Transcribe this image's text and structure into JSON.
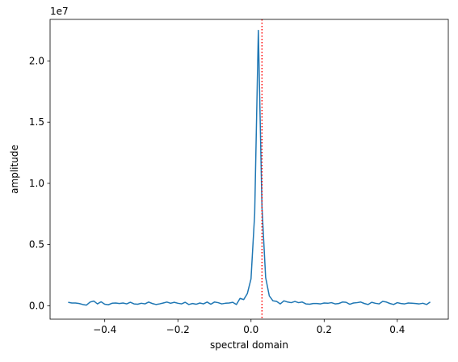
{
  "chart_data": {
    "type": "line",
    "xlabel": "spectral domain",
    "ylabel": "amplitude",
    "y_scale_label": "1e7",
    "xlim": [
      -0.5495,
      0.5395
    ],
    "ylim": [
      -0.11,
      2.34
    ],
    "x_ticks": [
      -0.4,
      -0.2,
      0.0,
      0.2,
      0.4
    ],
    "x_tick_labels": [
      "−0.4",
      "−0.2",
      "0.0",
      "0.2",
      "0.4"
    ],
    "y_ticks": [
      0.0,
      0.5,
      1.0,
      1.5,
      2.0
    ],
    "y_tick_labels": [
      "0.0",
      "0.5",
      "1.0",
      "1.5",
      "2.0"
    ],
    "grid": false,
    "series": [
      {
        "color": "#1f77b4",
        "x": [
          -0.5,
          -0.49,
          -0.48,
          -0.47,
          -0.46,
          -0.45,
          -0.44,
          -0.43,
          -0.42,
          -0.41,
          -0.4,
          -0.39,
          -0.38,
          -0.37,
          -0.36,
          -0.35,
          -0.34,
          -0.33,
          -0.32,
          -0.31,
          -0.3,
          -0.29,
          -0.28,
          -0.27,
          -0.26,
          -0.25,
          -0.24,
          -0.23,
          -0.22,
          -0.21,
          -0.2,
          -0.19,
          -0.18,
          -0.17,
          -0.16,
          -0.15,
          -0.14,
          -0.13,
          -0.12,
          -0.11,
          -0.1,
          -0.09,
          -0.08,
          -0.07,
          -0.06,
          -0.05,
          -0.04,
          -0.03,
          -0.02,
          -0.01,
          0.0,
          0.01,
          0.02,
          0.03,
          0.04,
          0.05,
          0.06,
          0.07,
          0.08,
          0.09,
          0.1,
          0.11,
          0.12,
          0.13,
          0.14,
          0.15,
          0.16,
          0.17,
          0.18,
          0.19,
          0.2,
          0.21,
          0.22,
          0.23,
          0.24,
          0.25,
          0.26,
          0.27,
          0.28,
          0.29,
          0.3,
          0.31,
          0.32,
          0.33,
          0.34,
          0.35,
          0.36,
          0.37,
          0.38,
          0.39,
          0.4,
          0.41,
          0.42,
          0.43,
          0.44,
          0.45,
          0.46,
          0.47,
          0.48,
          0.49
        ],
        "y": [
          0.028,
          0.022,
          0.022,
          0.018,
          0.01,
          0.005,
          0.03,
          0.038,
          0.015,
          0.032,
          0.012,
          0.008,
          0.02,
          0.022,
          0.018,
          0.022,
          0.015,
          0.028,
          0.015,
          0.012,
          0.02,
          0.015,
          0.03,
          0.018,
          0.01,
          0.015,
          0.022,
          0.03,
          0.02,
          0.028,
          0.02,
          0.015,
          0.028,
          0.01,
          0.018,
          0.012,
          0.022,
          0.015,
          0.03,
          0.012,
          0.03,
          0.025,
          0.015,
          0.02,
          0.022,
          0.028,
          0.01,
          0.06,
          0.05,
          0.1,
          0.22,
          0.75,
          2.25,
          0.8,
          0.23,
          0.08,
          0.04,
          0.035,
          0.015,
          0.04,
          0.03,
          0.025,
          0.035,
          0.025,
          0.03,
          0.015,
          0.012,
          0.018,
          0.018,
          0.015,
          0.022,
          0.02,
          0.025,
          0.015,
          0.018,
          0.03,
          0.028,
          0.012,
          0.022,
          0.025,
          0.03,
          0.018,
          0.01,
          0.028,
          0.02,
          0.015,
          0.035,
          0.03,
          0.018,
          0.01,
          0.025,
          0.018,
          0.015,
          0.022,
          0.02,
          0.018,
          0.015,
          0.02,
          0.01,
          0.03
        ]
      }
    ],
    "annotations": [
      {
        "type": "vline",
        "x": 0.03,
        "color": "#ff0000",
        "style": "dotted"
      }
    ]
  }
}
